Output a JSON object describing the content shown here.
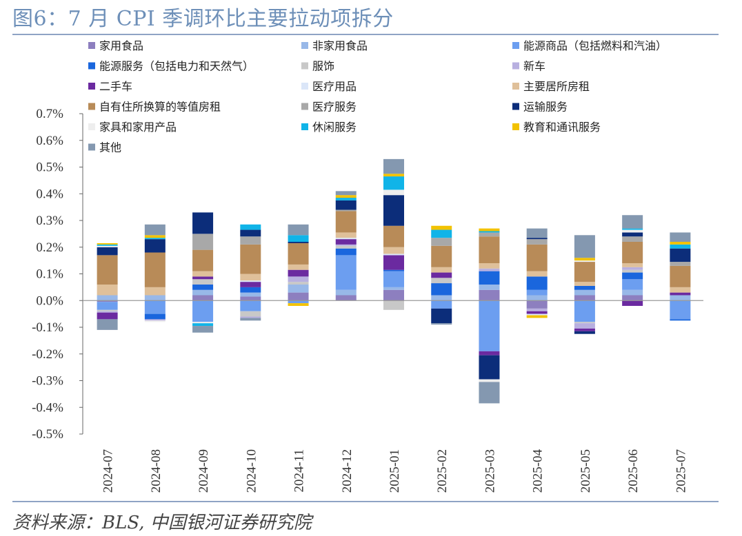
{
  "header": {
    "title": "图6：7 月 CPI 季调环比主要拉动项拆分"
  },
  "footer": {
    "source": "资料来源：BLS,  中国银河证券研究院"
  },
  "chart_data": {
    "type": "bar",
    "stacked": true,
    "title": "图6：7 月 CPI 季调环比主要拉动项拆分",
    "xlabel": "",
    "ylabel": "",
    "ylim": [
      -0.5,
      0.7
    ],
    "yticks": [
      "0.7%",
      "0.6%",
      "0.5%",
      "0.4%",
      "0.3%",
      "0.2%",
      "0.1%",
      "0.0%",
      "-0.1%",
      "-0.2%",
      "-0.3%",
      "-0.4%",
      "-0.5%"
    ],
    "legend_position": "top",
    "grid": false,
    "categories": [
      "2024-07",
      "2024-08",
      "2024-09",
      "2024-10",
      "2024-11",
      "2024-12",
      "2025-01",
      "2025-02",
      "2025-03",
      "2025-04",
      "2025-05",
      "2025-06",
      "2025-07"
    ],
    "series": [
      {
        "name": "家用食品",
        "color": "#8d7fbf",
        "values": [
          -0.005,
          0.0,
          0.02,
          0.015,
          0.03,
          0.02,
          0.04,
          0.0,
          0.04,
          -0.03,
          0.02,
          0.02,
          0.0
        ]
      },
      {
        "name": "非家用食品",
        "color": "#98b8e8",
        "values": [
          0.02,
          0.02,
          0.02,
          0.015,
          0.03,
          0.02,
          0.01,
          0.02,
          0.02,
          0.02,
          0.02,
          0.02,
          0.02
        ]
      },
      {
        "name": "能源商品（包括燃料和汽油）",
        "color": "#6c9ef0",
        "values": [
          -0.03,
          -0.05,
          -0.08,
          -0.04,
          -0.01,
          0.13,
          0.06,
          -0.03,
          -0.19,
          0.02,
          -0.08,
          0.04,
          -0.07
        ]
      },
      {
        "name": "能源服务（包括电力和天然气）",
        "color": "#1a66dd",
        "values": [
          0.0,
          -0.02,
          0.02,
          0.02,
          0.0,
          0.025,
          0.005,
          0.045,
          0.05,
          0.05,
          0.015,
          0.025,
          -0.005
        ]
      },
      {
        "name": "服饰",
        "color": "#c8c8c8",
        "values": [
          -0.005,
          0.0,
          0.02,
          -0.02,
          0.01,
          0.01,
          -0.035,
          0.02,
          0.0,
          0.0,
          -0.005,
          0.01,
          0.0
        ]
      },
      {
        "name": "新车",
        "color": "#b8b0e0",
        "values": [
          -0.005,
          -0.005,
          0.0,
          -0.005,
          0.02,
          0.005,
          0.0,
          0.0,
          0.01,
          -0.01,
          -0.02,
          0.01,
          0.0
        ]
      },
      {
        "name": "二手车",
        "color": "#6b2aa0",
        "values": [
          -0.025,
          0.0,
          0.01,
          0.02,
          0.025,
          0.02,
          0.055,
          0.02,
          -0.015,
          -0.01,
          -0.01,
          -0.02,
          0.01
        ]
      },
      {
        "name": "医疗用品",
        "color": "#dbe6f8",
        "values": [
          0.0,
          0.0,
          0.0,
          0.005,
          0.0,
          0.005,
          0.005,
          0.0,
          0.0,
          -0.005,
          0.0,
          0.0,
          0.0
        ]
      },
      {
        "name": "主要居所房租",
        "color": "#dfc09a",
        "values": [
          0.04,
          0.03,
          0.02,
          0.025,
          0.02,
          0.02,
          0.025,
          0.02,
          0.02,
          0.02,
          0.015,
          0.015,
          0.02
        ]
      },
      {
        "name": "自有住所换算的等值房租",
        "color": "#b88b58",
        "values": [
          0.11,
          0.13,
          0.08,
          0.11,
          0.08,
          0.08,
          0.08,
          0.08,
          0.1,
          0.1,
          0.075,
          0.08,
          0.08
        ]
      },
      {
        "name": "医疗服务",
        "color": "#a8a8a8",
        "values": [
          0.0,
          0.0,
          0.06,
          0.03,
          0.0,
          0.005,
          0.0,
          0.03,
          0.015,
          0.02,
          0.0,
          0.02,
          0.015
        ]
      },
      {
        "name": "运输服务",
        "color": "#0c2d7a",
        "values": [
          0.03,
          0.05,
          0.08,
          0.025,
          0.005,
          0.035,
          0.115,
          -0.055,
          -0.09,
          0.005,
          -0.01,
          0.015,
          0.05
        ]
      },
      {
        "name": "家具和家用产品",
        "color": "#eeeeee",
        "values": [
          0.005,
          -0.005,
          -0.005,
          0.0,
          0.0,
          0.0,
          0.02,
          0.0,
          -0.01,
          0.0,
          0.005,
          0.01,
          0.0
        ]
      },
      {
        "name": "休闲服务",
        "color": "#10b4e8",
        "values": [
          0.005,
          0.005,
          -0.01,
          0.02,
          0.025,
          0.01,
          0.05,
          0.03,
          0.005,
          0.0,
          0.0,
          0.005,
          0.015
        ]
      },
      {
        "name": "教育和通讯服务",
        "color": "#f2c200",
        "values": [
          0.005,
          0.01,
          0.0,
          0.0,
          -0.01,
          0.01,
          0.01,
          0.015,
          0.01,
          -0.01,
          0.01,
          0.0,
          0.01
        ]
      },
      {
        "name": "其他",
        "color": "#8498b0",
        "values": [
          -0.04,
          0.04,
          -0.025,
          -0.01,
          0.04,
          0.015,
          0.055,
          -0.005,
          -0.08,
          0.035,
          0.085,
          0.05,
          0.035
        ]
      }
    ]
  }
}
